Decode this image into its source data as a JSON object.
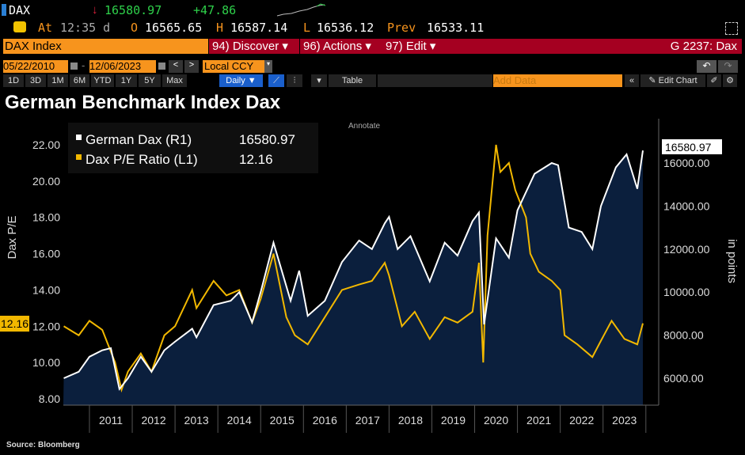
{
  "header": {
    "ticker": "DAX",
    "last": "16580.97",
    "change": "+47.86",
    "at_label": "At",
    "time": "12:35 d",
    "open_label": "O",
    "open": "16565.65",
    "high_label": "H",
    "high": "16587.14",
    "low_label": "L",
    "low": "16536.12",
    "prev_label": "Prev",
    "prev": "16533.11"
  },
  "menubar": {
    "security": "DAX Index",
    "discover": "94) Discover ▾",
    "actions": "96) Actions ▾",
    "edit": "97) Edit ▾",
    "page": "G 2237: Dax"
  },
  "range": {
    "start": "05/22/2010",
    "end": "12/06/2023",
    "currency": "Local CCY",
    "add_data_placeholder": "Add Data",
    "edit_chart": "Edit Chart"
  },
  "periods": [
    "1D",
    "3D",
    "1M",
    "6M",
    "YTD",
    "1Y",
    "5Y",
    "Max"
  ],
  "frequency": "Daily ▼",
  "table_label": "Table",
  "annotate": "Annotate",
  "colors": {
    "dax": "#ffffff",
    "pe": "#f2b800",
    "area": "#0b1f3d",
    "orange": "#f7941d",
    "red": "#a50021"
  },
  "chart_data": {
    "type": "line",
    "title": "German Benchmark Index Dax",
    "source": "Source: Bloomberg",
    "ylabel_left": "Dax P/E",
    "ylabel_right": "in points",
    "ylim_left": [
      7.6,
      23.8
    ],
    "ylim_right": [
      5000,
      17500
    ],
    "yticks_left": [
      "8.00",
      "10.00",
      "12.00",
      "14.00",
      "16.00",
      "18.00",
      "20.00",
      "22.00"
    ],
    "yticks_right": [
      "6000.00",
      "8000.00",
      "10000.00",
      "12000.00",
      "14000.00",
      "16000.00"
    ],
    "xticks": [
      "2011",
      "2012",
      "2013",
      "2014",
      "2015",
      "2016",
      "2017",
      "2018",
      "2019",
      "2020",
      "2021",
      "2022",
      "2023"
    ],
    "xlim": [
      2010.39,
      2023.93
    ],
    "legend": [
      {
        "name": "German Dax (R1)",
        "last": "16580.97"
      },
      {
        "name": "Dax P/E Ratio (L1)",
        "last": "12.16"
      }
    ],
    "series": [
      {
        "name": "German Dax (R1)",
        "axis": "right",
        "x": [
          2010.4,
          2010.75,
          2011.0,
          2011.3,
          2011.5,
          2011.7,
          2011.9,
          2012.2,
          2012.45,
          2012.75,
          2013.0,
          2013.4,
          2013.5,
          2013.9,
          2014.3,
          2014.5,
          2014.8,
          2015.0,
          2015.3,
          2015.7,
          2015.9,
          2016.1,
          2016.5,
          2016.9,
          2017.3,
          2017.6,
          2017.9,
          2018.0,
          2018.2,
          2018.5,
          2018.95,
          2019.3,
          2019.6,
          2019.95,
          2020.1,
          2020.22,
          2020.5,
          2020.8,
          2021.0,
          2021.4,
          2021.8,
          2021.95,
          2022.2,
          2022.5,
          2022.75,
          2022.95,
          2023.3,
          2023.55,
          2023.8,
          2023.93
        ],
        "y": [
          6000,
          6300,
          7000,
          7300,
          7400,
          5500,
          6000,
          7000,
          6300,
          7300,
          7700,
          8300,
          7900,
          9400,
          9600,
          10000,
          8600,
          10000,
          12300,
          9600,
          11000,
          8900,
          9600,
          11400,
          12400,
          12000,
          13200,
          13500,
          12000,
          12600,
          10500,
          12300,
          11700,
          13300,
          13700,
          8500,
          12500,
          11600,
          13800,
          15500,
          16000,
          15900,
          13000,
          12800,
          12000,
          14000,
          15800,
          16400,
          14800,
          16580.97
        ]
      },
      {
        "name": "Dax P/E Ratio (L1)",
        "axis": "left",
        "x": [
          2010.4,
          2010.75,
          2011.0,
          2011.3,
          2011.6,
          2011.75,
          2011.9,
          2012.2,
          2012.45,
          2012.75,
          2013.0,
          2013.4,
          2013.5,
          2013.9,
          2014.2,
          2014.5,
          2014.8,
          2015.0,
          2015.3,
          2015.6,
          2015.8,
          2016.1,
          2016.5,
          2016.9,
          2017.3,
          2017.6,
          2017.9,
          2018.0,
          2018.3,
          2018.6,
          2018.95,
          2019.3,
          2019.6,
          2019.95,
          2020.1,
          2020.2,
          2020.3,
          2020.5,
          2020.6,
          2020.8,
          2020.95,
          2021.2,
          2021.3,
          2021.5,
          2021.8,
          2022.0,
          2022.1,
          2022.4,
          2022.75,
          2022.95,
          2023.2,
          2023.5,
          2023.8,
          2023.93
        ],
        "y": [
          12,
          11.5,
          12.3,
          11.8,
          10,
          8.5,
          9.5,
          10.5,
          9.5,
          11.5,
          12,
          14,
          13,
          14.5,
          13.7,
          14,
          12.2,
          13.5,
          16,
          12.5,
          11.5,
          11,
          12.5,
          14,
          14.3,
          14.5,
          15.5,
          14.8,
          12,
          12.8,
          11.3,
          12.5,
          12.2,
          12.8,
          15.5,
          10,
          17,
          22,
          20.5,
          21,
          19.5,
          18,
          16,
          15,
          14.5,
          14,
          11.5,
          11,
          10.3,
          11.2,
          12.3,
          11.3,
          11,
          12.16
        ]
      }
    ]
  }
}
